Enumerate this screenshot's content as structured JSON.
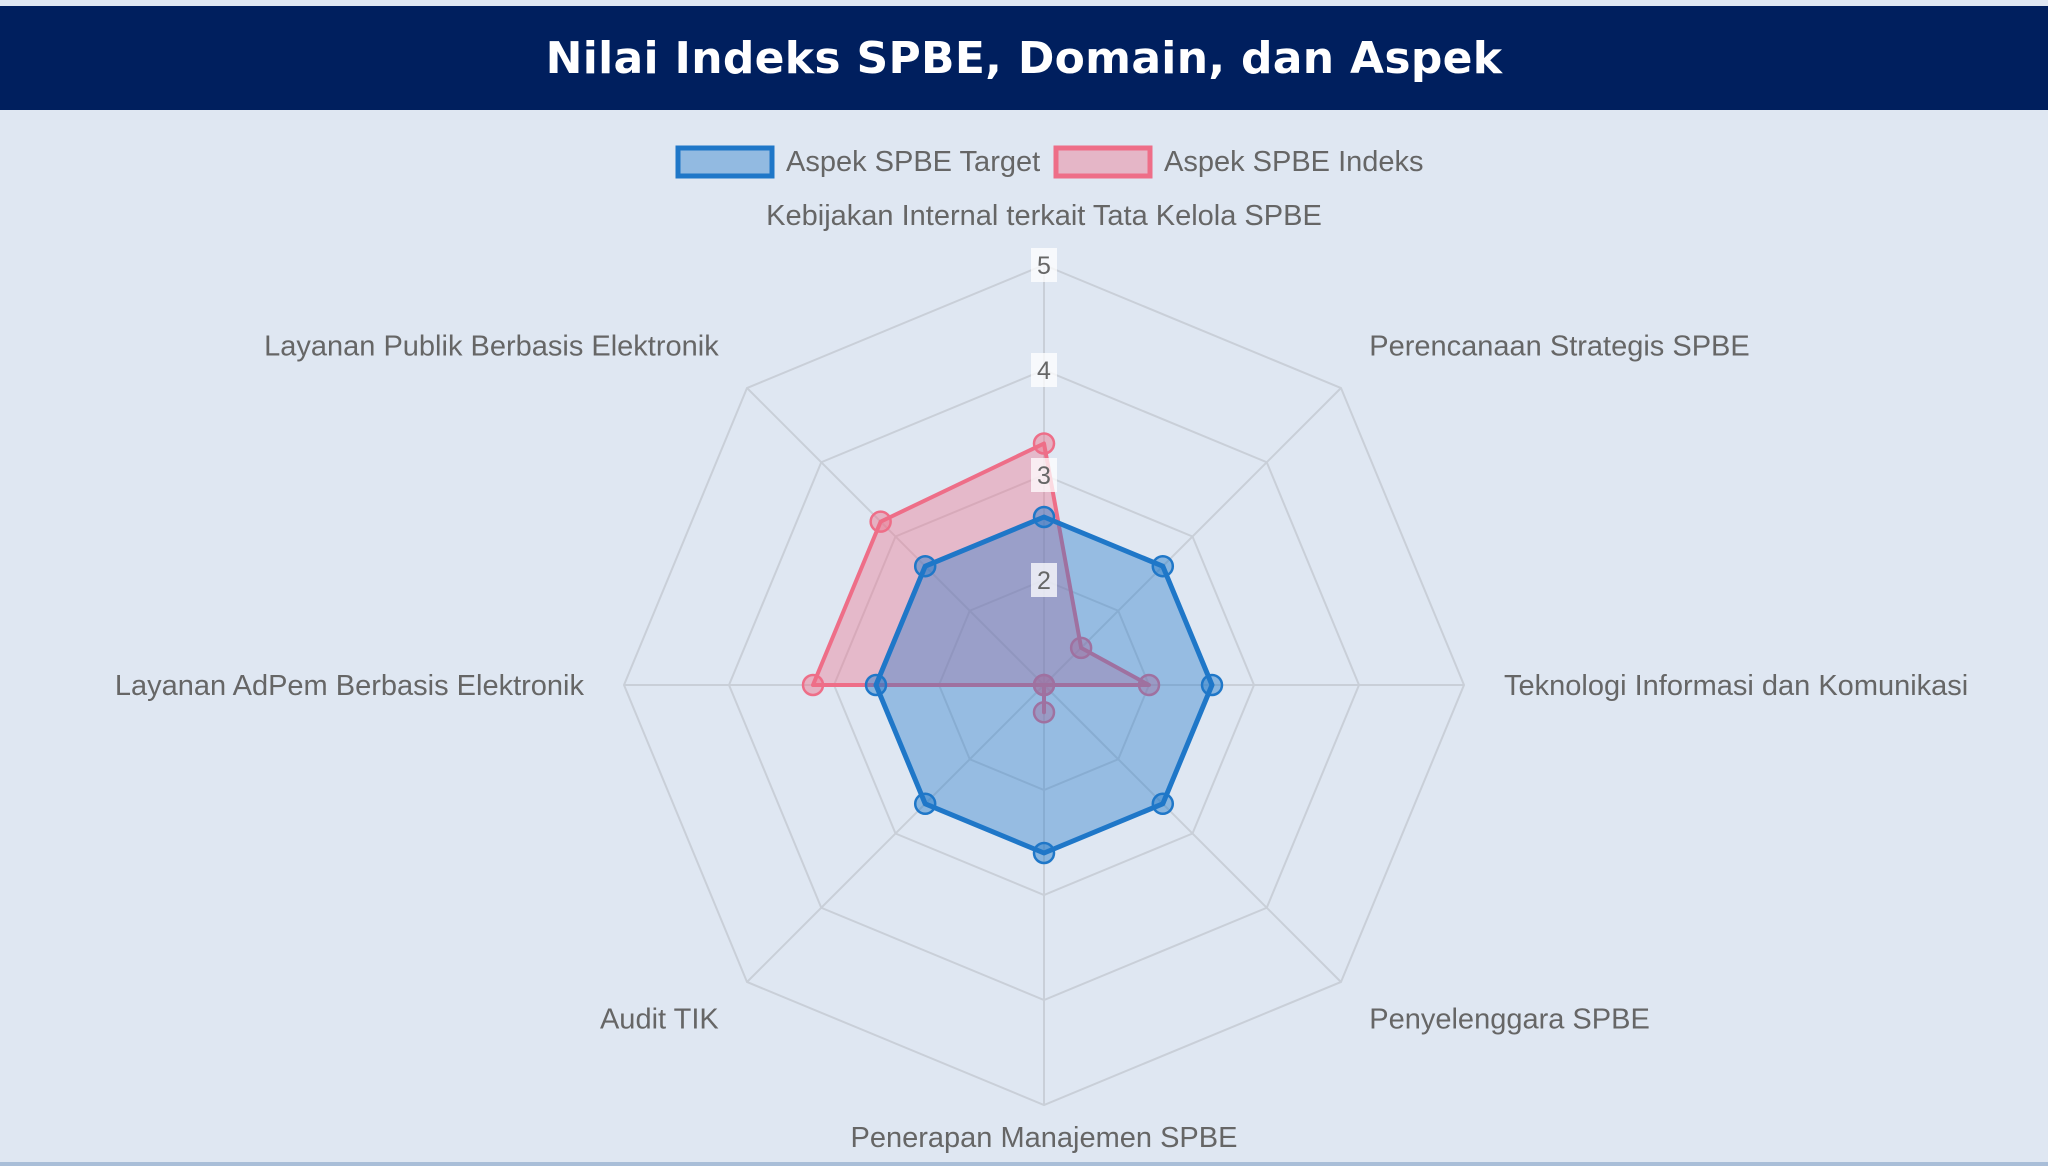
{
  "header": {
    "title": "Nilai Indeks SPBE, Domain, dan Aspek"
  },
  "colors": {
    "header_bg": "#001f5e",
    "panel_bg": "#dfe7f2",
    "grid": "#c9cfd8",
    "target": "#1f77c8",
    "indeks": "#ee6e88"
  },
  "chart_data": {
    "type": "radar",
    "title": "Nilai Indeks SPBE, Domain, dan Aspek",
    "categories": [
      "Kebijakan Internal terkait Tata Kelola SPBE",
      "Perencanaan Strategis SPBE",
      "Teknologi Informasi dan Komunikasi",
      "Penyelenggara SPBE",
      "Penerapan Manajemen SPBE",
      "Audit TIK",
      "Layanan AdPem Berbasis Elektronik",
      "Layanan Publik Berbasis Elektronik"
    ],
    "series": [
      {
        "name": "Aspek SPBE Target",
        "values": [
          2.6,
          2.6,
          2.6,
          2.6,
          2.6,
          2.6,
          2.6,
          2.6
        ]
      },
      {
        "name": "Aspek SPBE Indeks",
        "values": [
          3.3,
          1.5,
          2.0,
          1.0,
          1.26,
          1.0,
          3.2,
          3.2
        ]
      }
    ],
    "r_ticks": [
      2,
      3,
      4,
      5
    ],
    "r_range": [
      1,
      5
    ],
    "legend_position": "top"
  }
}
